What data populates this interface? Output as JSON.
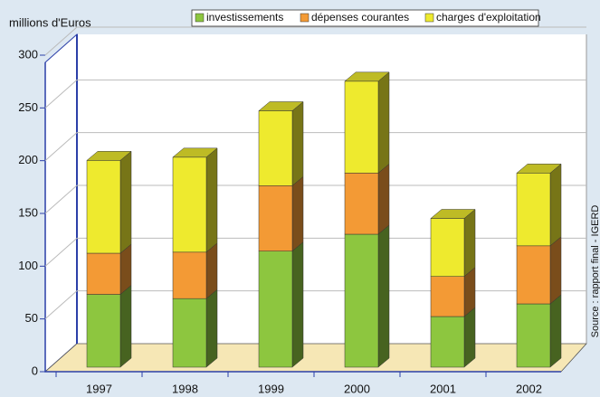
{
  "chart_data": {
    "type": "bar3d-stacked",
    "y_label": "millions d'Euros",
    "source": "Source : rapport final - IGERD",
    "categories": [
      "1997",
      "1998",
      "1999",
      "2000",
      "2001",
      "2002"
    ],
    "series": [
      {
        "name": "investissements",
        "color": "#8dc63f",
        "values": [
          69,
          65,
          110,
          126,
          48,
          60
        ]
      },
      {
        "name": "dépenses courantes",
        "color": "#f39a35",
        "values": [
          39,
          44,
          62,
          58,
          38,
          55
        ]
      },
      {
        "name": "charges d'exploitation",
        "color": "#eeea2e",
        "values": [
          88,
          90,
          71,
          87,
          55,
          69
        ]
      }
    ],
    "ylim": [
      0,
      300
    ],
    "yticks": [
      0,
      50,
      100,
      150,
      200,
      250,
      300
    ],
    "grid": true
  }
}
